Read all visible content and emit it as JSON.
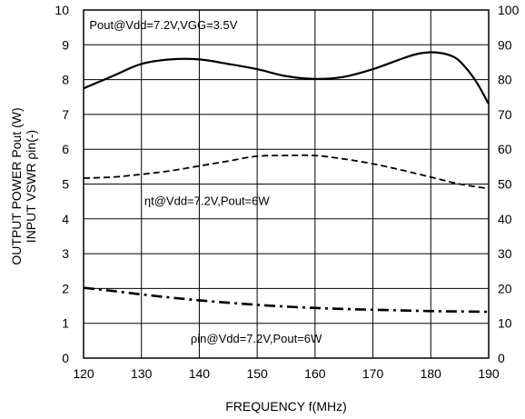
{
  "chart_data": {
    "type": "line",
    "xlabel": "FREQUENCY f(MHz)",
    "ylabel_lines": [
      "OUTPUT POWER Pout (W)",
      "INPUT VSWR ρin(-)"
    ],
    "xlim": [
      120,
      190
    ],
    "ylim": [
      0,
      10
    ],
    "y2lim": [
      0,
      100
    ],
    "x_ticks": [
      120,
      130,
      140,
      150,
      160,
      170,
      180,
      190
    ],
    "y_ticks": [
      0,
      1,
      2,
      3,
      4,
      5,
      6,
      7,
      8,
      9,
      10
    ],
    "y2_ticks": [
      0,
      10,
      20,
      30,
      40,
      50,
      60,
      70,
      80,
      90,
      100
    ],
    "grid": true,
    "series": [
      {
        "name": "Pout@Vdd=7.2V,VGG=3.5V",
        "axis": "left",
        "style": "solid",
        "color": "#000000",
        "points": [
          [
            120,
            7.75
          ],
          [
            125,
            8.1
          ],
          [
            130,
            8.45
          ],
          [
            135,
            8.58
          ],
          [
            140,
            8.58
          ],
          [
            145,
            8.45
          ],
          [
            150,
            8.3
          ],
          [
            155,
            8.1
          ],
          [
            160,
            8.02
          ],
          [
            165,
            8.08
          ],
          [
            170,
            8.3
          ],
          [
            175,
            8.6
          ],
          [
            178,
            8.75
          ],
          [
            181,
            8.78
          ],
          [
            184,
            8.65
          ],
          [
            186,
            8.35
          ],
          [
            188,
            7.9
          ],
          [
            190,
            7.3
          ]
        ]
      },
      {
        "name": "ηt@Vdd=7.2V,Pout=6W",
        "axis": "right",
        "style": "dashed",
        "color": "#000000",
        "points": [
          [
            120,
            51.7
          ],
          [
            125,
            52.0
          ],
          [
            130,
            52.8
          ],
          [
            135,
            53.8
          ],
          [
            140,
            55.2
          ],
          [
            145,
            56.6
          ],
          [
            150,
            58.0
          ],
          [
            155,
            58.2
          ],
          [
            160,
            58.2
          ],
          [
            165,
            57.2
          ],
          [
            170,
            55.8
          ],
          [
            175,
            54.0
          ],
          [
            180,
            52.0
          ],
          [
            185,
            50.0
          ],
          [
            190,
            48.7
          ]
        ]
      },
      {
        "name": "ρin@Vdd=7.2V,Pout=6W",
        "axis": "left",
        "style": "dashdot",
        "color": "#000000",
        "points": [
          [
            120,
            2.02
          ],
          [
            125,
            1.93
          ],
          [
            130,
            1.83
          ],
          [
            135,
            1.74
          ],
          [
            140,
            1.66
          ],
          [
            145,
            1.59
          ],
          [
            150,
            1.53
          ],
          [
            155,
            1.48
          ],
          [
            160,
            1.44
          ],
          [
            165,
            1.41
          ],
          [
            170,
            1.39
          ],
          [
            175,
            1.37
          ],
          [
            180,
            1.35
          ],
          [
            185,
            1.34
          ],
          [
            190,
            1.33
          ]
        ]
      }
    ],
    "annotations": [
      {
        "text": "Pout@Vdd=7.2V,VGG=3.5V",
        "x": 121,
        "y": 9.45,
        "axis": "left"
      },
      {
        "text": "ηt@Vdd=7.2V,Pout=6W",
        "x": 130.5,
        "y": 4.4,
        "axis": "left"
      },
      {
        "text": "ρin@Vdd=7.2V,Pout=6W",
        "x": 138.5,
        "y": 0.45,
        "axis": "left"
      }
    ]
  }
}
